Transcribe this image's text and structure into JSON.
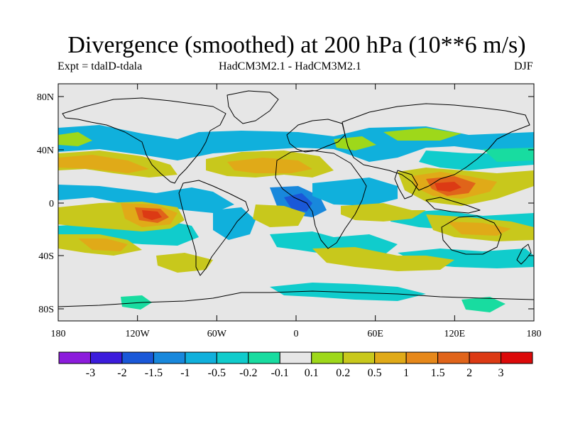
{
  "title": "Divergence (smoothed) at 200 hPa (10**6 m/s)",
  "subtitle_left": "Expt = tdalD-tdala",
  "subtitle_center": "HadCM3M2.1 - HadCM3M2.1",
  "subtitle_right": "DJF",
  "axes": {
    "lat_ticks": [
      "80N",
      "40N",
      "0",
      "40S",
      "80S"
    ],
    "lon_ticks": [
      "180",
      "120W",
      "60W",
      "0",
      "60E",
      "120E",
      "180"
    ]
  },
  "colorbar": {
    "labels": [
      "-3",
      "-2",
      "-1.5",
      "-1",
      "-0.5",
      "-0.2",
      "-0.1",
      "0.1",
      "0.2",
      "0.5",
      "1",
      "1.5",
      "2",
      "3"
    ],
    "colors": [
      "#8c1cdc",
      "#3c1cdc",
      "#1a58d8",
      "#1888dc",
      "#10b0dc",
      "#10cccc",
      "#18dca0",
      "#e6e6e6",
      "#9ed81a",
      "#c8c81c",
      "#e0aa18",
      "#e6881a",
      "#e0641a",
      "#dc3a14",
      "#dc0a0a"
    ]
  }
}
